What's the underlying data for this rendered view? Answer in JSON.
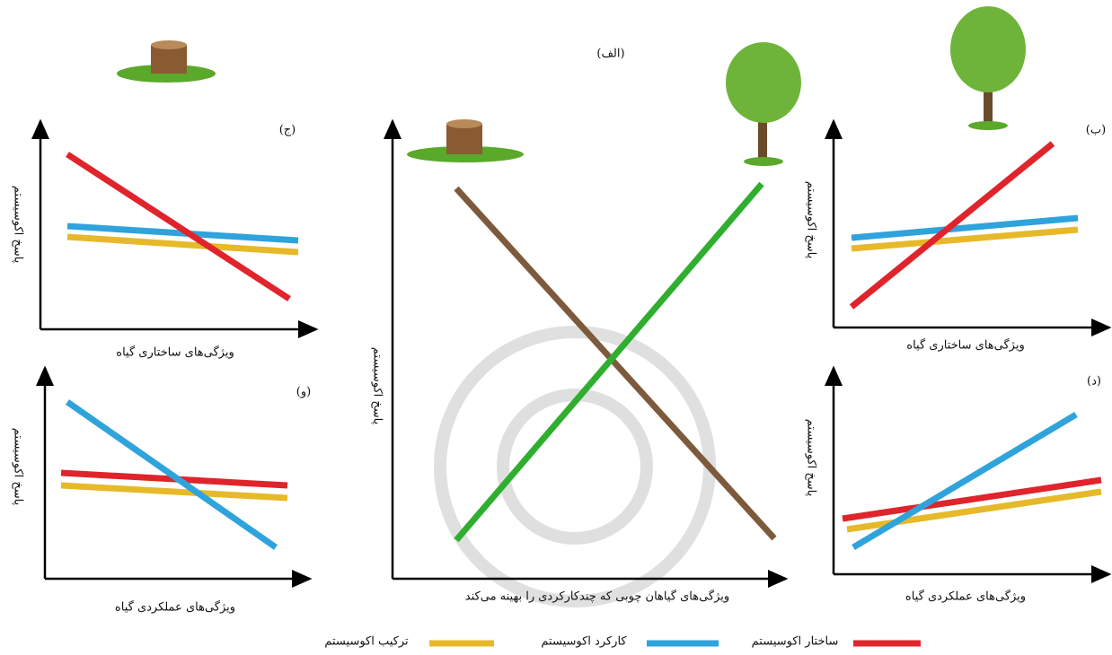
{
  "panels": [
    {
      "label": "(الف)",
      "y_label": "پاسخ اکوسیستم",
      "x_label": "ویژگی‌های گیاهان چوبی که چندکارکردی را بهینه می‌کند"
    },
    {
      "label": "(ب)",
      "y_label": "پاسخ اکوسیستم",
      "x_label": "ویژگی‌های ساختاری گیاه"
    },
    {
      "label": "(ج)",
      "y_label": "پاسخ اکوسیستم",
      "x_label": "ویژگی‌های ساختاری گیاه"
    },
    {
      "label": "(د)",
      "y_label": "پاسخ اکوسیستم",
      "x_label": "ویژگی‌های عملکردی گیاه"
    },
    {
      "label": "(و)",
      "y_label": "پاسخ اکوسیستم",
      "x_label": "ویژگی‌های عملکردی گیاه"
    }
  ],
  "legend": [
    {
      "name": "ساختار اکوسیستم",
      "color": "#e0242b"
    },
    {
      "name": "کارکرد اکوسیستم",
      "color": "#2fa3dc"
    },
    {
      "name": "ترکیب اکوسیستم",
      "color": "#e6b92a"
    }
  ]
}
